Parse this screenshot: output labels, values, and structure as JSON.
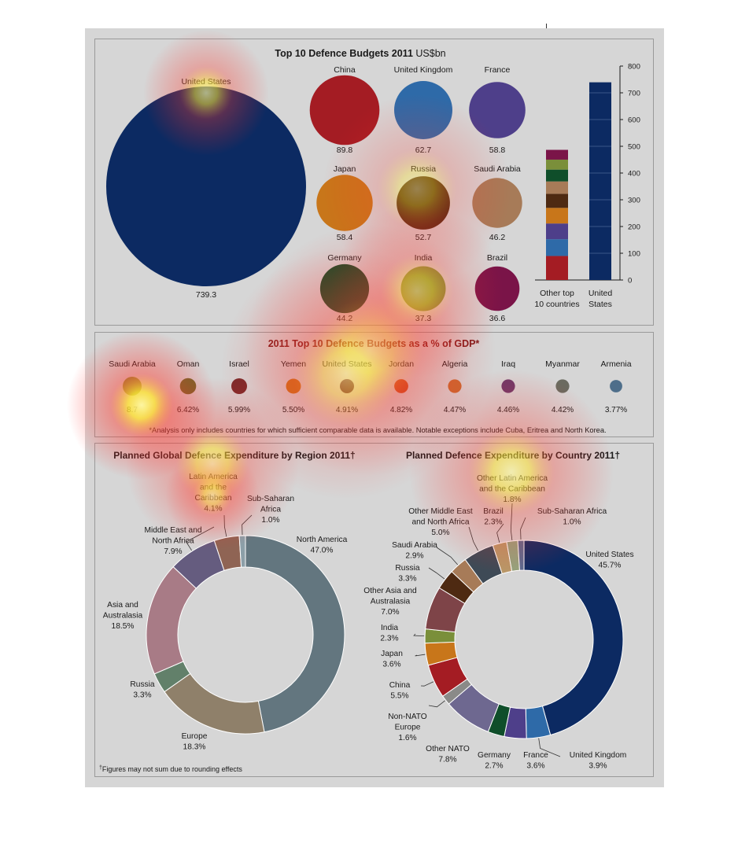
{
  "colors": {
    "background": "#d6d6d6",
    "text": "#1a1a1a",
    "title": "#1a1a1a",
    "us_blue": "#0c2a62"
  },
  "chart_data": [
    {
      "type": "bubble",
      "title": "Top 10 Defence Budgets 2011",
      "title_unit": "US$bn",
      "items": [
        {
          "name": "United States",
          "value": 739.3,
          "color": "#0c2a62"
        },
        {
          "name": "China",
          "value": 89.8,
          "color": "#a41c23"
        },
        {
          "name": "United Kingdom",
          "value": 62.7,
          "color": "#2e6aa8"
        },
        {
          "name": "France",
          "value": 58.8,
          "color": "#4e3f8a"
        },
        {
          "name": "Japan",
          "value": 58.4,
          "color": "#c8761a"
        },
        {
          "name": "Russia",
          "value": 52.7,
          "color": "#4e2a12"
        },
        {
          "name": "Saudi Arabia",
          "value": 46.2,
          "color": "#a77b58"
        },
        {
          "name": "Germany",
          "value": 44.2,
          "color": "#0f4e2a"
        },
        {
          "name": "India",
          "value": 37.3,
          "color": "#7a8f3a"
        },
        {
          "name": "Brazil",
          "value": 36.6,
          "color": "#7a1448"
        }
      ]
    },
    {
      "type": "bar",
      "stacked": true,
      "categories": [
        "Other top\n10 countries",
        "United\nStates"
      ],
      "ylim": [
        0,
        800
      ],
      "yticks": [
        0,
        100,
        200,
        300,
        400,
        500,
        600,
        700,
        800
      ],
      "stack_order_bottom_to_top": [
        "China",
        "United Kingdom",
        "France",
        "Japan",
        "Russia",
        "Saudi Arabia",
        "Germany",
        "India",
        "Brazil"
      ]
    },
    {
      "type": "bubble",
      "title": "2011 Top 10 Defence Budgets as a % of GDP*",
      "footnote": "*Analysis only includes countries for which sufficient comparable data is available. Notable exceptions include Cuba, Eritrea and North Korea.",
      "items": [
        {
          "name": "Saudi Arabia",
          "value": 8.7,
          "label": "8.7",
          "color": "#8a8f3a"
        },
        {
          "name": "Oman",
          "value": 6.42,
          "label": "6.42%",
          "color": "#6b6a2a"
        },
        {
          "name": "Israel",
          "value": 5.99,
          "label": "5.99%",
          "color": "#7a2a2a"
        },
        {
          "name": "Yemen",
          "value": 5.5,
          "label": "5.50%",
          "color": "#c8761a"
        },
        {
          "name": "United States",
          "value": 4.91,
          "label": "4.91%",
          "color": "#4a0e2a"
        },
        {
          "name": "Jordan",
          "value": 4.82,
          "label": "4.82%",
          "color": "#c8501e"
        },
        {
          "name": "Algeria",
          "value": 4.47,
          "label": "4.47%",
          "color": "#c86a30"
        },
        {
          "name": "Iraq",
          "value": 4.46,
          "label": "4.46%",
          "color": "#6e3a6a"
        },
        {
          "name": "Myanmar",
          "value": 4.42,
          "label": "4.42%",
          "color": "#6b6b60"
        },
        {
          "name": "Armenia",
          "value": 3.77,
          "label": "3.77%",
          "color": "#4e6e8a"
        }
      ]
    },
    {
      "type": "pie",
      "donut": true,
      "title": "Planned Global Defence Expenditure by Region 2011†",
      "footnote": "Figures may not sum due to rounding effects",
      "footnote_mark": "†",
      "slices": [
        {
          "name": "North America",
          "label_lines": [
            "North America",
            "47.0%"
          ],
          "value": 47.0,
          "color": "#63767f"
        },
        {
          "name": "Europe",
          "label_lines": [
            "Europe",
            "18.3%"
          ],
          "value": 18.3,
          "color": "#8f806a"
        },
        {
          "name": "Russia",
          "label_lines": [
            "Russia",
            "3.3%"
          ],
          "value": 3.3,
          "color": "#62806a"
        },
        {
          "name": "Asia and Australasia",
          "label_lines": [
            "Asia and",
            "Australasia",
            "18.5%"
          ],
          "value": 18.5,
          "color": "#a87b86"
        },
        {
          "name": "Middle East and North Africa",
          "label_lines": [
            "Middle East and",
            "North Africa",
            "7.9%"
          ],
          "value": 7.9,
          "color": "#655c7f"
        },
        {
          "name": "Latin America and the Caribbean",
          "label_lines": [
            "Latin America",
            "and the",
            "Caribbean",
            "4.1%"
          ],
          "value": 4.1,
          "color": "#8f6454"
        },
        {
          "name": "Sub-Saharan Africa",
          "label_lines": [
            "Sub-Saharan",
            "Africa",
            "1.0%"
          ],
          "value": 1.0,
          "color": "#8c9fa8"
        }
      ]
    },
    {
      "type": "pie",
      "donut": true,
      "title": "Planned Defence Expenditure by Country 2011†",
      "slices": [
        {
          "name": "United States",
          "label_lines": [
            "United States",
            "45.7%"
          ],
          "value": 45.7,
          "color": "#0c2a62"
        },
        {
          "name": "United Kingdom",
          "label_lines": [
            "United Kingdom",
            "3.9%"
          ],
          "value": 3.9,
          "color": "#2e6aa8"
        },
        {
          "name": "France",
          "label_lines": [
            "France",
            "3.6%"
          ],
          "value": 3.6,
          "color": "#4e3f8a"
        },
        {
          "name": "Germany",
          "label_lines": [
            "Germany",
            "2.7%"
          ],
          "value": 2.7,
          "color": "#0f4e2a"
        },
        {
          "name": "Other NATO",
          "label_lines": [
            "Other NATO",
            "7.8%"
          ],
          "value": 7.8,
          "color": "#6e6890"
        },
        {
          "name": "Non-NATO Europe",
          "label_lines": [
            "Non-NATO",
            "Europe",
            "1.6%"
          ],
          "value": 1.6,
          "color": "#8a8a88"
        },
        {
          "name": "China",
          "label_lines": [
            "China",
            "5.5%"
          ],
          "value": 5.5,
          "color": "#a41c23"
        },
        {
          "name": "Japan",
          "label_lines": [
            "Japan",
            "3.6%"
          ],
          "value": 3.6,
          "color": "#c8761a"
        },
        {
          "name": "India",
          "label_lines": [
            "India",
            "2.3%"
          ],
          "value": 2.3,
          "color": "#7a8f3a"
        },
        {
          "name": "Other Asia and Australasia",
          "label_lines": [
            "Other Asia and",
            "Australasia",
            "7.0%"
          ],
          "value": 7.0,
          "color": "#7e4448"
        },
        {
          "name": "Russia",
          "label_lines": [
            "Russia",
            "3.3%"
          ],
          "value": 3.3,
          "color": "#4e2a12"
        },
        {
          "name": "Saudi Arabia",
          "label_lines": [
            "Saudi Arabia",
            "2.9%"
          ],
          "value": 2.9,
          "color": "#a77b58"
        },
        {
          "name": "Other Middle East and North Africa",
          "label_lines": [
            "Other Middle East",
            "and North Africa",
            "5.0%"
          ],
          "value": 5.0,
          "color": "#3e4a56"
        },
        {
          "name": "Brazil",
          "label_lines": [
            "Brazil",
            "2.3%"
          ],
          "value": 2.3,
          "color": "#b89868"
        },
        {
          "name": "Other Latin America and the Caribbean",
          "label_lines": [
            "Other Latin America",
            "and the Caribbean",
            "1.8%"
          ],
          "value": 1.8,
          "color": "#94a47e"
        },
        {
          "name": "Sub-Saharan Africa",
          "label_lines": [
            "Sub-Saharan Africa",
            "1.0%"
          ],
          "value": 1.0,
          "color": "#5a6a8f"
        }
      ]
    }
  ],
  "heatmap": {
    "spots": [
      {
        "name": "hot-spot-gdp-saudi",
        "cx": 180,
        "cy": 515,
        "r": 95,
        "intensity": 1.0
      },
      {
        "name": "hot-spot-us-label",
        "cx": 262,
        "cy": 118,
        "r": 80,
        "intensity": 0.7
      },
      {
        "name": "hot-spot-region-title",
        "cx": 270,
        "cy": 590,
        "r": 110,
        "intensity": 0.7
      },
      {
        "name": "hot-spot-country-title",
        "cx": 650,
        "cy": 600,
        "r": 130,
        "intensity": 0.7
      },
      {
        "name": "hot-spot-gdp-title",
        "cx": 470,
        "cy": 445,
        "r": 160,
        "intensity": 0.55
      },
      {
        "name": "hot-spot-gdp-row",
        "cx": 440,
        "cy": 475,
        "r": 160,
        "intensity": 0.5
      },
      {
        "name": "hot-spot-latam-label",
        "cx": 270,
        "cy": 630,
        "r": 60,
        "intensity": 0.55
      },
      {
        "name": "hot-spot-bubbles-top",
        "cx": 530,
        "cy": 240,
        "r": 120,
        "intensity": 0.45
      },
      {
        "name": "hot-spot-bubbles-bottom",
        "cx": 530,
        "cy": 370,
        "r": 110,
        "intensity": 0.45
      }
    ]
  }
}
